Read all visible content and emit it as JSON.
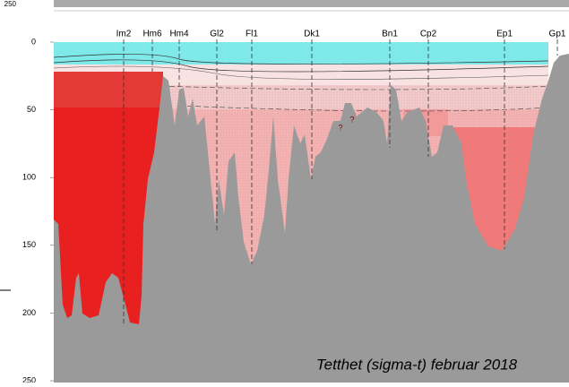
{
  "chart_data": {
    "type": "section",
    "title": "Tetthet (sigma-t) februar 2018",
    "categories": [
      "Im2",
      "Hm6",
      "Hm4",
      "Gl2",
      "Fl1",
      "Dk1",
      "Bn1",
      "Cp2",
      "Ep1",
      "Gp1"
    ],
    "ylim": [
      0,
      250
    ],
    "yticks": [
      0,
      50,
      100,
      150,
      200,
      250
    ],
    "upper_panel_ytick": 250,
    "annotations": [
      "?",
      "?"
    ]
  }
}
